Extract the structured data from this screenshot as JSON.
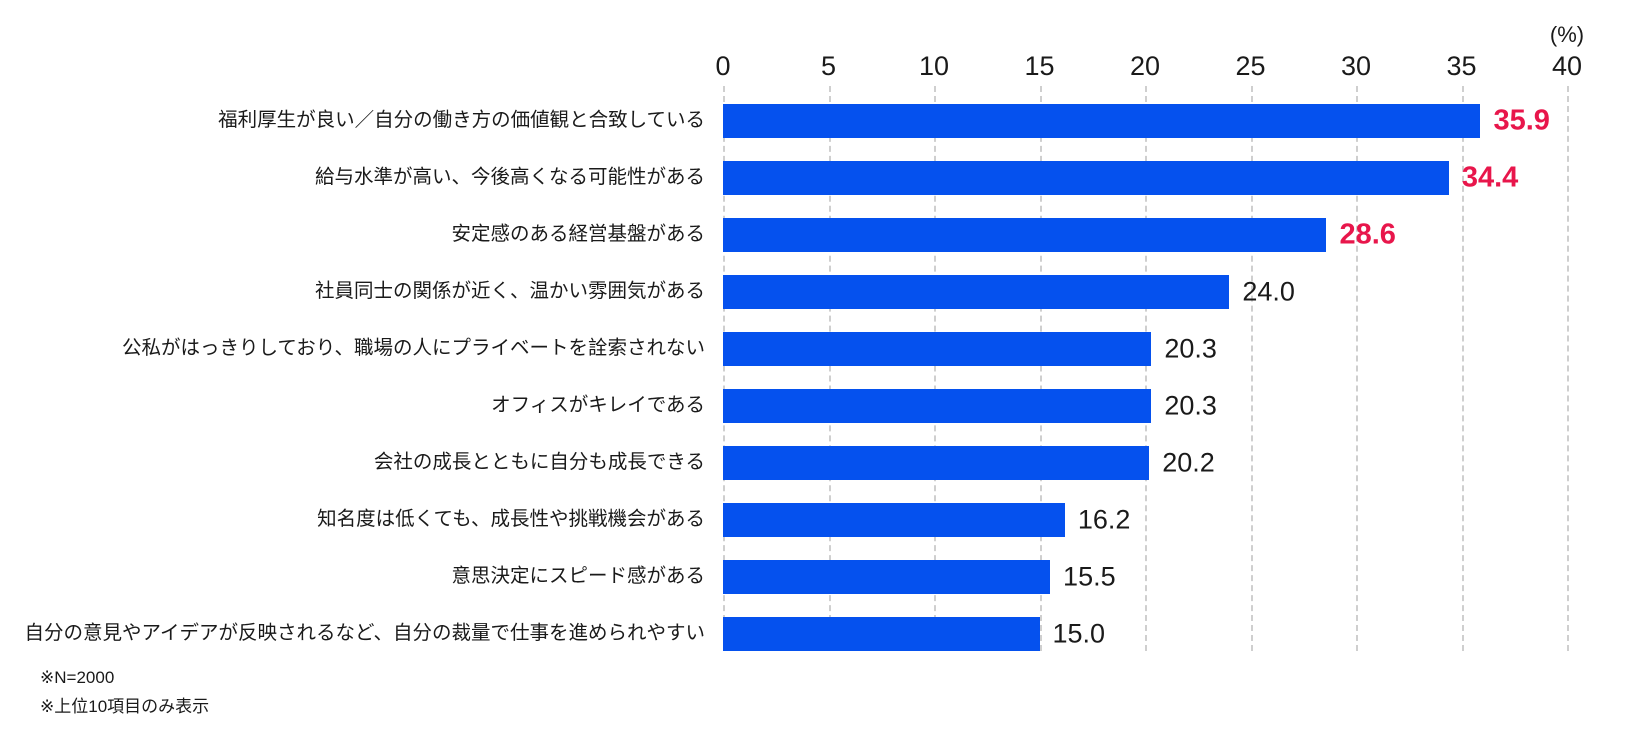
{
  "chart_data": {
    "type": "bar",
    "orientation": "horizontal",
    "title": "",
    "unit_label": "(%)",
    "xlim": [
      0,
      40
    ],
    "xticks": [
      "0",
      "5",
      "10",
      "15",
      "20",
      "25",
      "30",
      "35",
      "40"
    ],
    "grid": "vertical-dashed",
    "categories": [
      "福利厚生が良い／自分の働き方の価値観と合致している",
      "給与水準が高い、今後高くなる可能性がある",
      "安定感のある経営基盤がある",
      "社員同士の関係が近く、温かい雰囲気がある",
      "公私がはっきりしており、職場の人にプライベートを詮索されない",
      "オフィスがキレイである",
      "会社の成長とともに自分も成長できる",
      "知名度は低くても、成長性や挑戦機会がある",
      "意思決定にスピード感がある",
      "自分の意見やアイデアが反映されるなど、自分の裁量で仕事を進められやすい"
    ],
    "values": [
      35.9,
      34.4,
      28.6,
      24.0,
      20.3,
      20.3,
      20.2,
      16.2,
      15.5,
      15.0
    ],
    "value_labels": [
      "35.9",
      "34.4",
      "28.6",
      "24.0",
      "20.3",
      "20.3",
      "20.2",
      "16.2",
      "15.5",
      "15.0"
    ],
    "emphasized_indices": [
      0,
      1,
      2
    ],
    "colors": {
      "bar": "#0551ee",
      "value_emphasis": "#e8164b",
      "value_normal": "#1a1a1a",
      "gridline": "#cfcfcf",
      "text": "#1a1a1a"
    }
  },
  "notes": [
    "※N=2000",
    "※上位10項目のみ表示"
  ]
}
